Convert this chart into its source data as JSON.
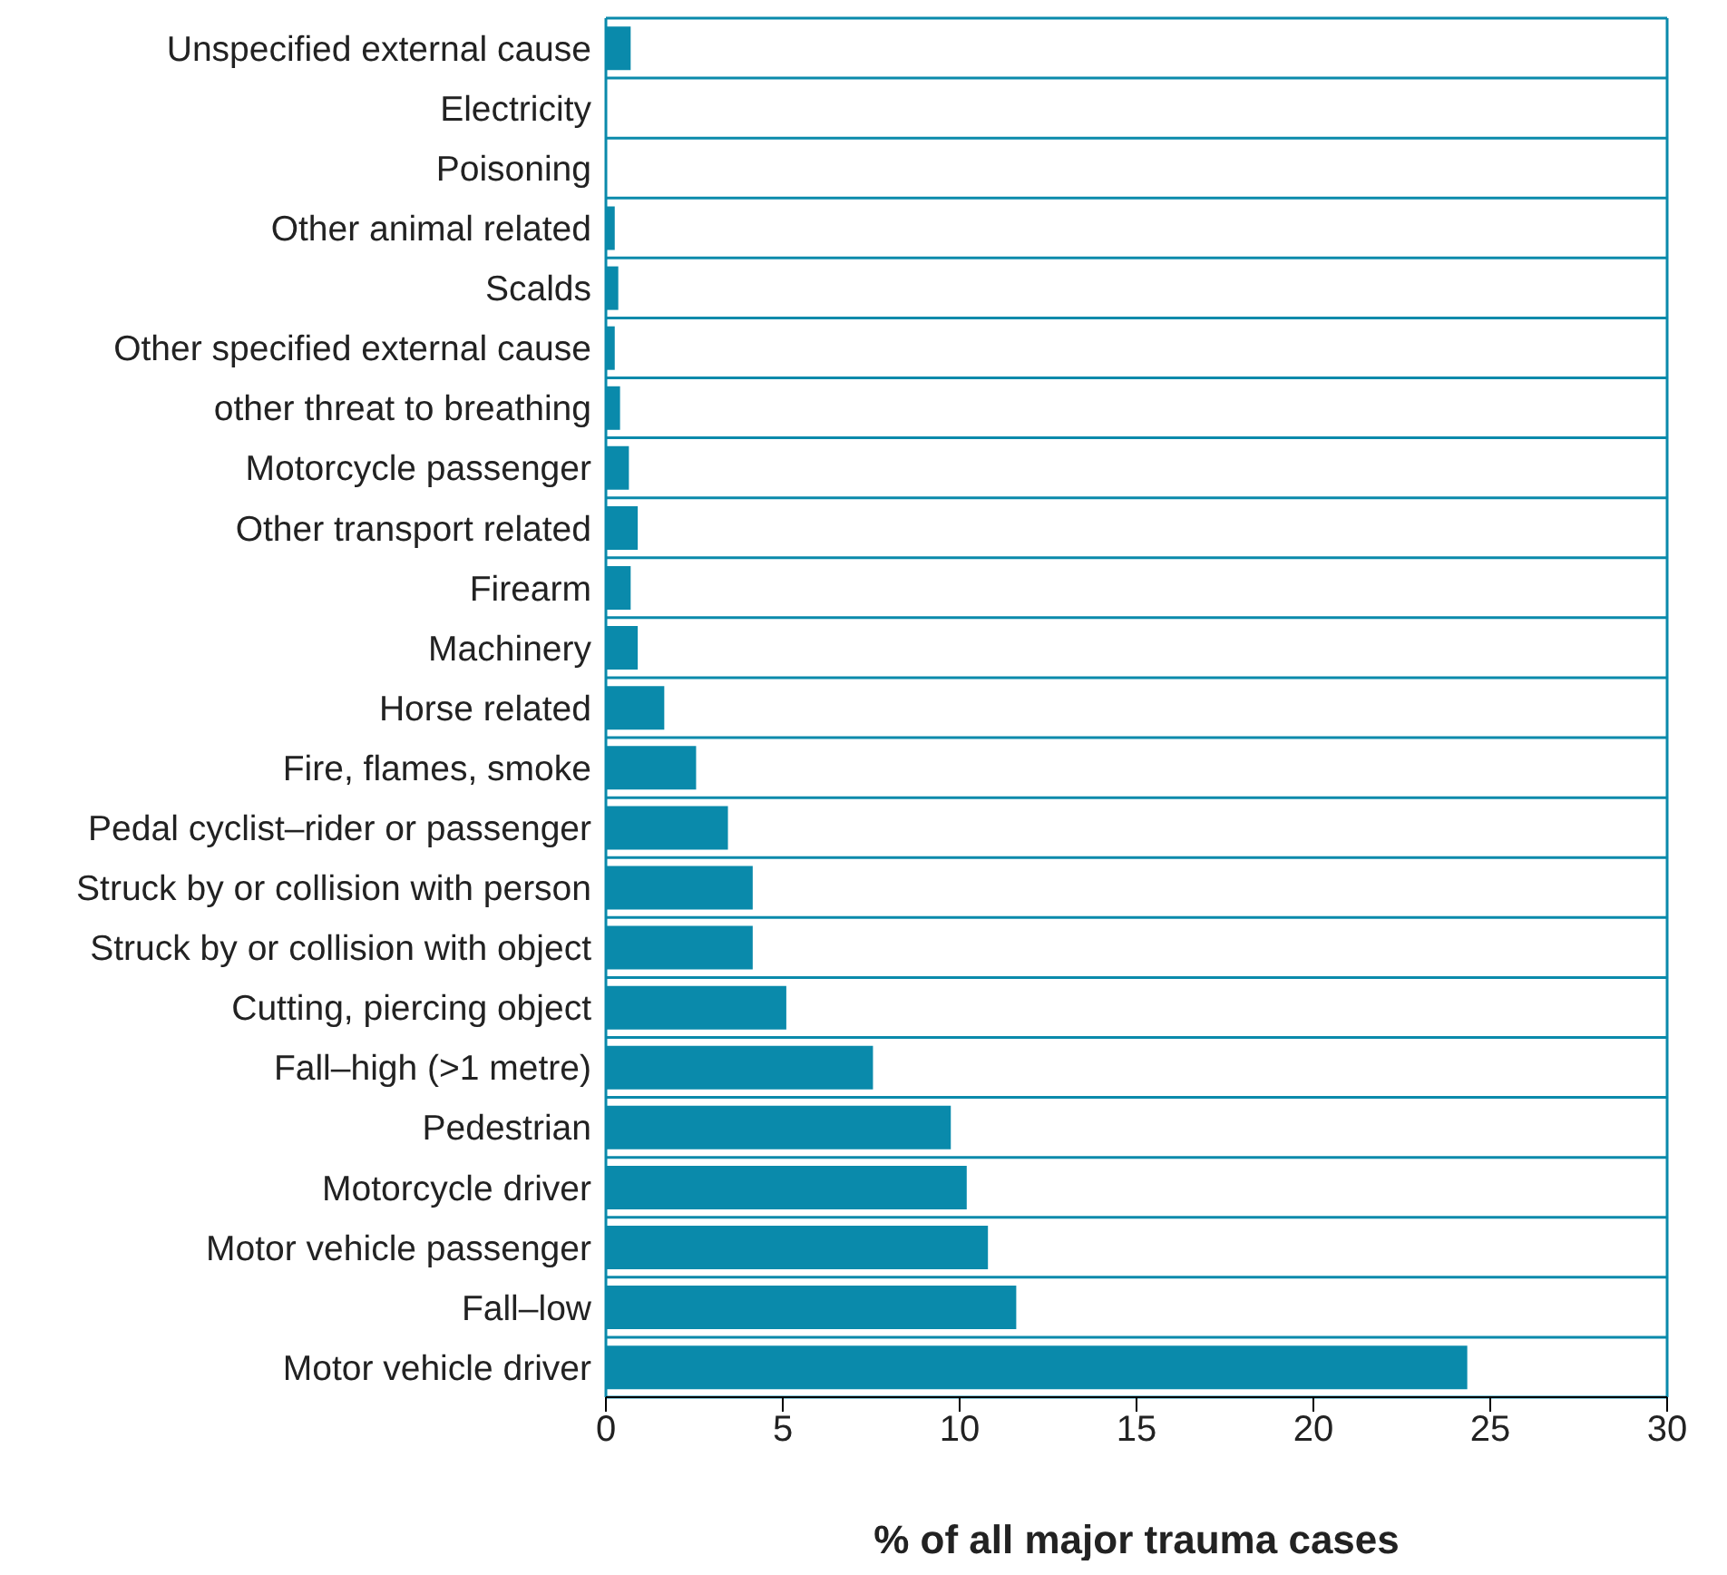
{
  "chart_data": {
    "type": "bar",
    "orientation": "horizontal",
    "xlabel": "% of all major trauma cases",
    "categories": [
      "Unspecified external cause",
      "Electricity",
      "Poisoning",
      "Other animal related",
      "Scalds",
      "Other specified external cause",
      "other threat to breathing",
      "Motorcycle passenger",
      "Other transport related",
      "Firearm",
      "Machinery",
      "Horse related",
      "Fire, flames, smoke",
      "Pedal cyclist–rider or passenger",
      "Struck by or collision with person",
      "Struck by or collision with object",
      "Cutting, piercing object",
      "Fall–high (>1 metre)",
      "Pedestrian",
      "Motorcycle driver",
      "Motor vehicle passenger",
      "Fall–low",
      "Motor vehicle driver"
    ],
    "values": [
      0.7,
      0,
      0,
      0.25,
      0.35,
      0.25,
      0.4,
      0.65,
      0.9,
      0.7,
      0.9,
      1.65,
      2.55,
      3.45,
      4.15,
      4.15,
      5.1,
      7.55,
      9.75,
      10.2,
      10.8,
      11.6,
      24.35
    ],
    "color": "#0a8aab",
    "xlim": [
      0,
      30
    ],
    "xticks": [
      0,
      5,
      10,
      15,
      20,
      25,
      30
    ],
    "grid": "y"
  }
}
